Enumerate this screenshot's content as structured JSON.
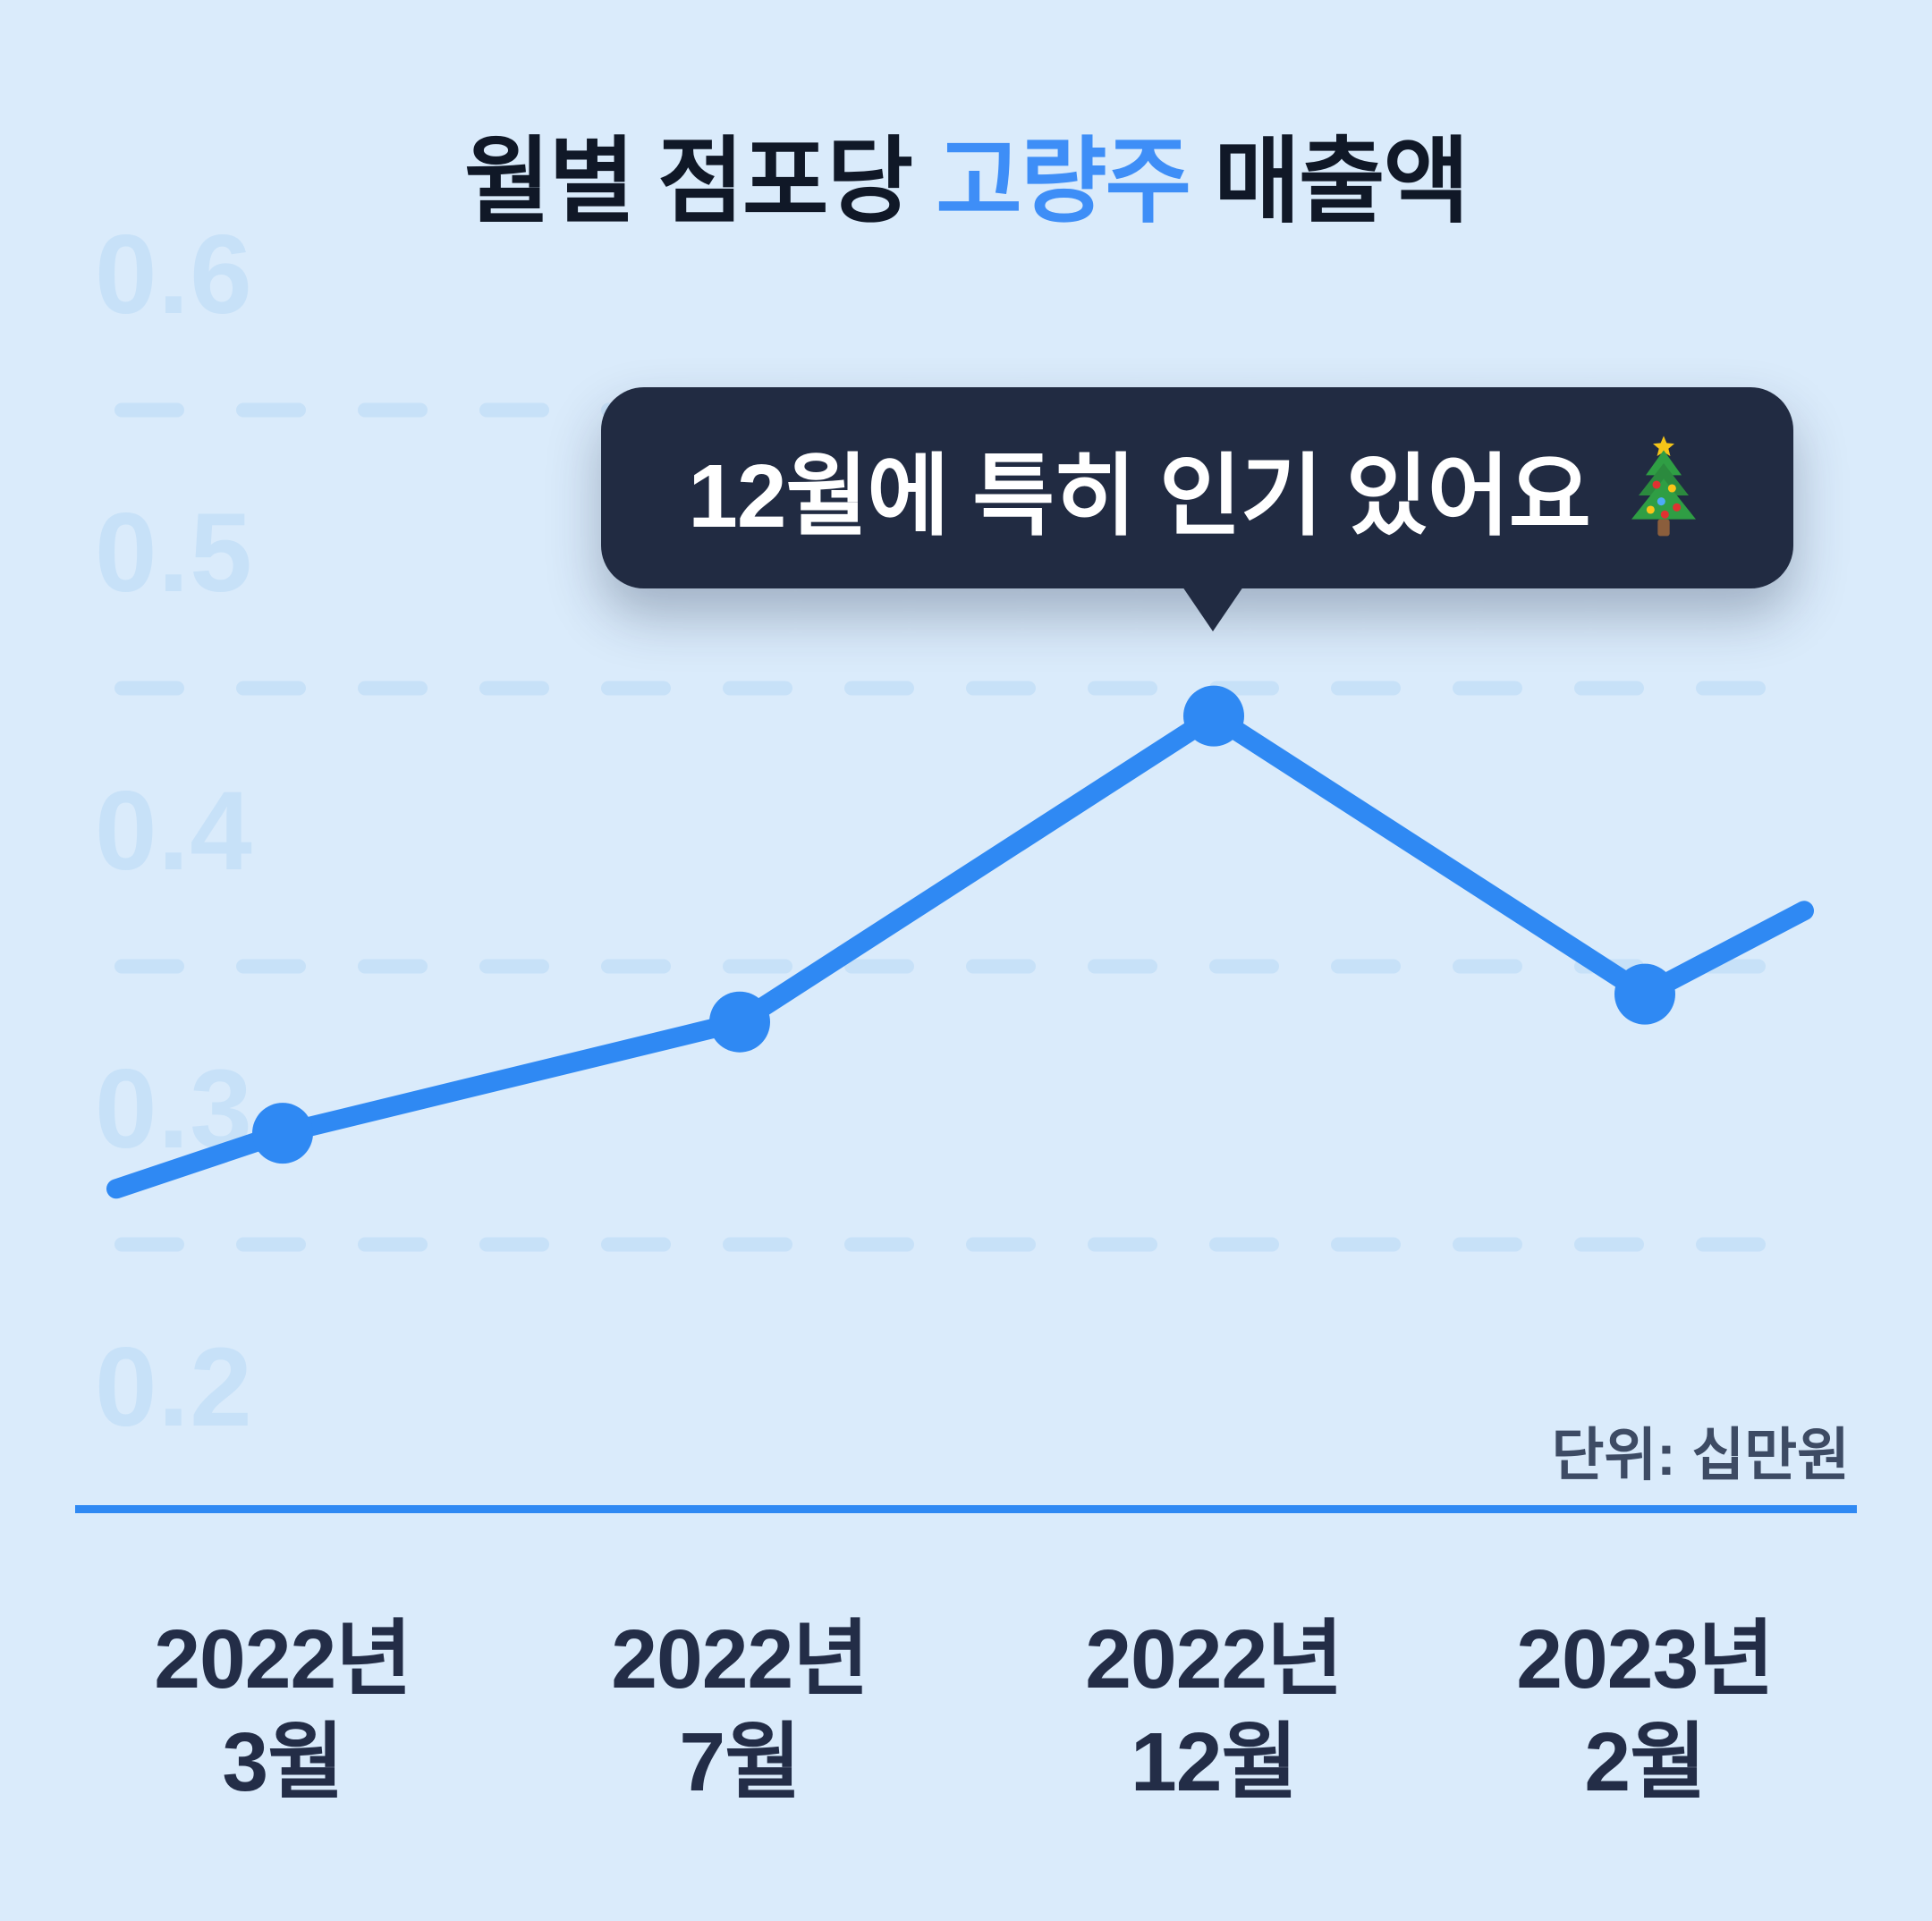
{
  "page": {
    "background_color": "#DAEBFB"
  },
  "title": {
    "prefix": "월별 점포당 ",
    "highlight": "고량주",
    "suffix": " 매출액",
    "text_color": "#101827",
    "accent_color": "#3E8EF7"
  },
  "tooltip": {
    "text": "12월에 특히 인기 있어요",
    "icon": "christmas-tree",
    "background_color": "#212B42",
    "text_color": "#FFFFFF",
    "points_at": "2022년 12월"
  },
  "unit_label": "단위: 십만원",
  "chart_data": {
    "type": "line",
    "categories": [
      "2022년 3월",
      "2022년 7월",
      "2022년 12월",
      "2023년 2월"
    ],
    "values": [
      0.29,
      0.33,
      0.44,
      0.34
    ],
    "edge_values": {
      "left": 0.27,
      "right": 0.37
    },
    "y_ticks": [
      0.6,
      0.5,
      0.4,
      0.3,
      0.2
    ],
    "gridline_values": [
      0.55,
      0.45,
      0.35,
      0.25
    ],
    "ylim": [
      0.2,
      0.6
    ],
    "ylabel": "십만원",
    "grid_style": "dashed",
    "legend": "none",
    "annotation": {
      "category": "2022년 12월",
      "text": "12월에 특히 인기 있어요",
      "icon": "christmas-tree"
    },
    "line_color": "#2F89F3",
    "point_color": "#2F89F3",
    "grid_color": "#C7E1F8",
    "tick_label_color": "#C7E1F8",
    "axis_color": "#2F89F3"
  },
  "x_axis": {
    "labels": [
      {
        "year": "2022년",
        "month": "3월"
      },
      {
        "year": "2022년",
        "month": "7월"
      },
      {
        "year": "2022년",
        "month": "12월"
      },
      {
        "year": "2023년",
        "month": "2월"
      }
    ],
    "label_color": "#232D47"
  }
}
